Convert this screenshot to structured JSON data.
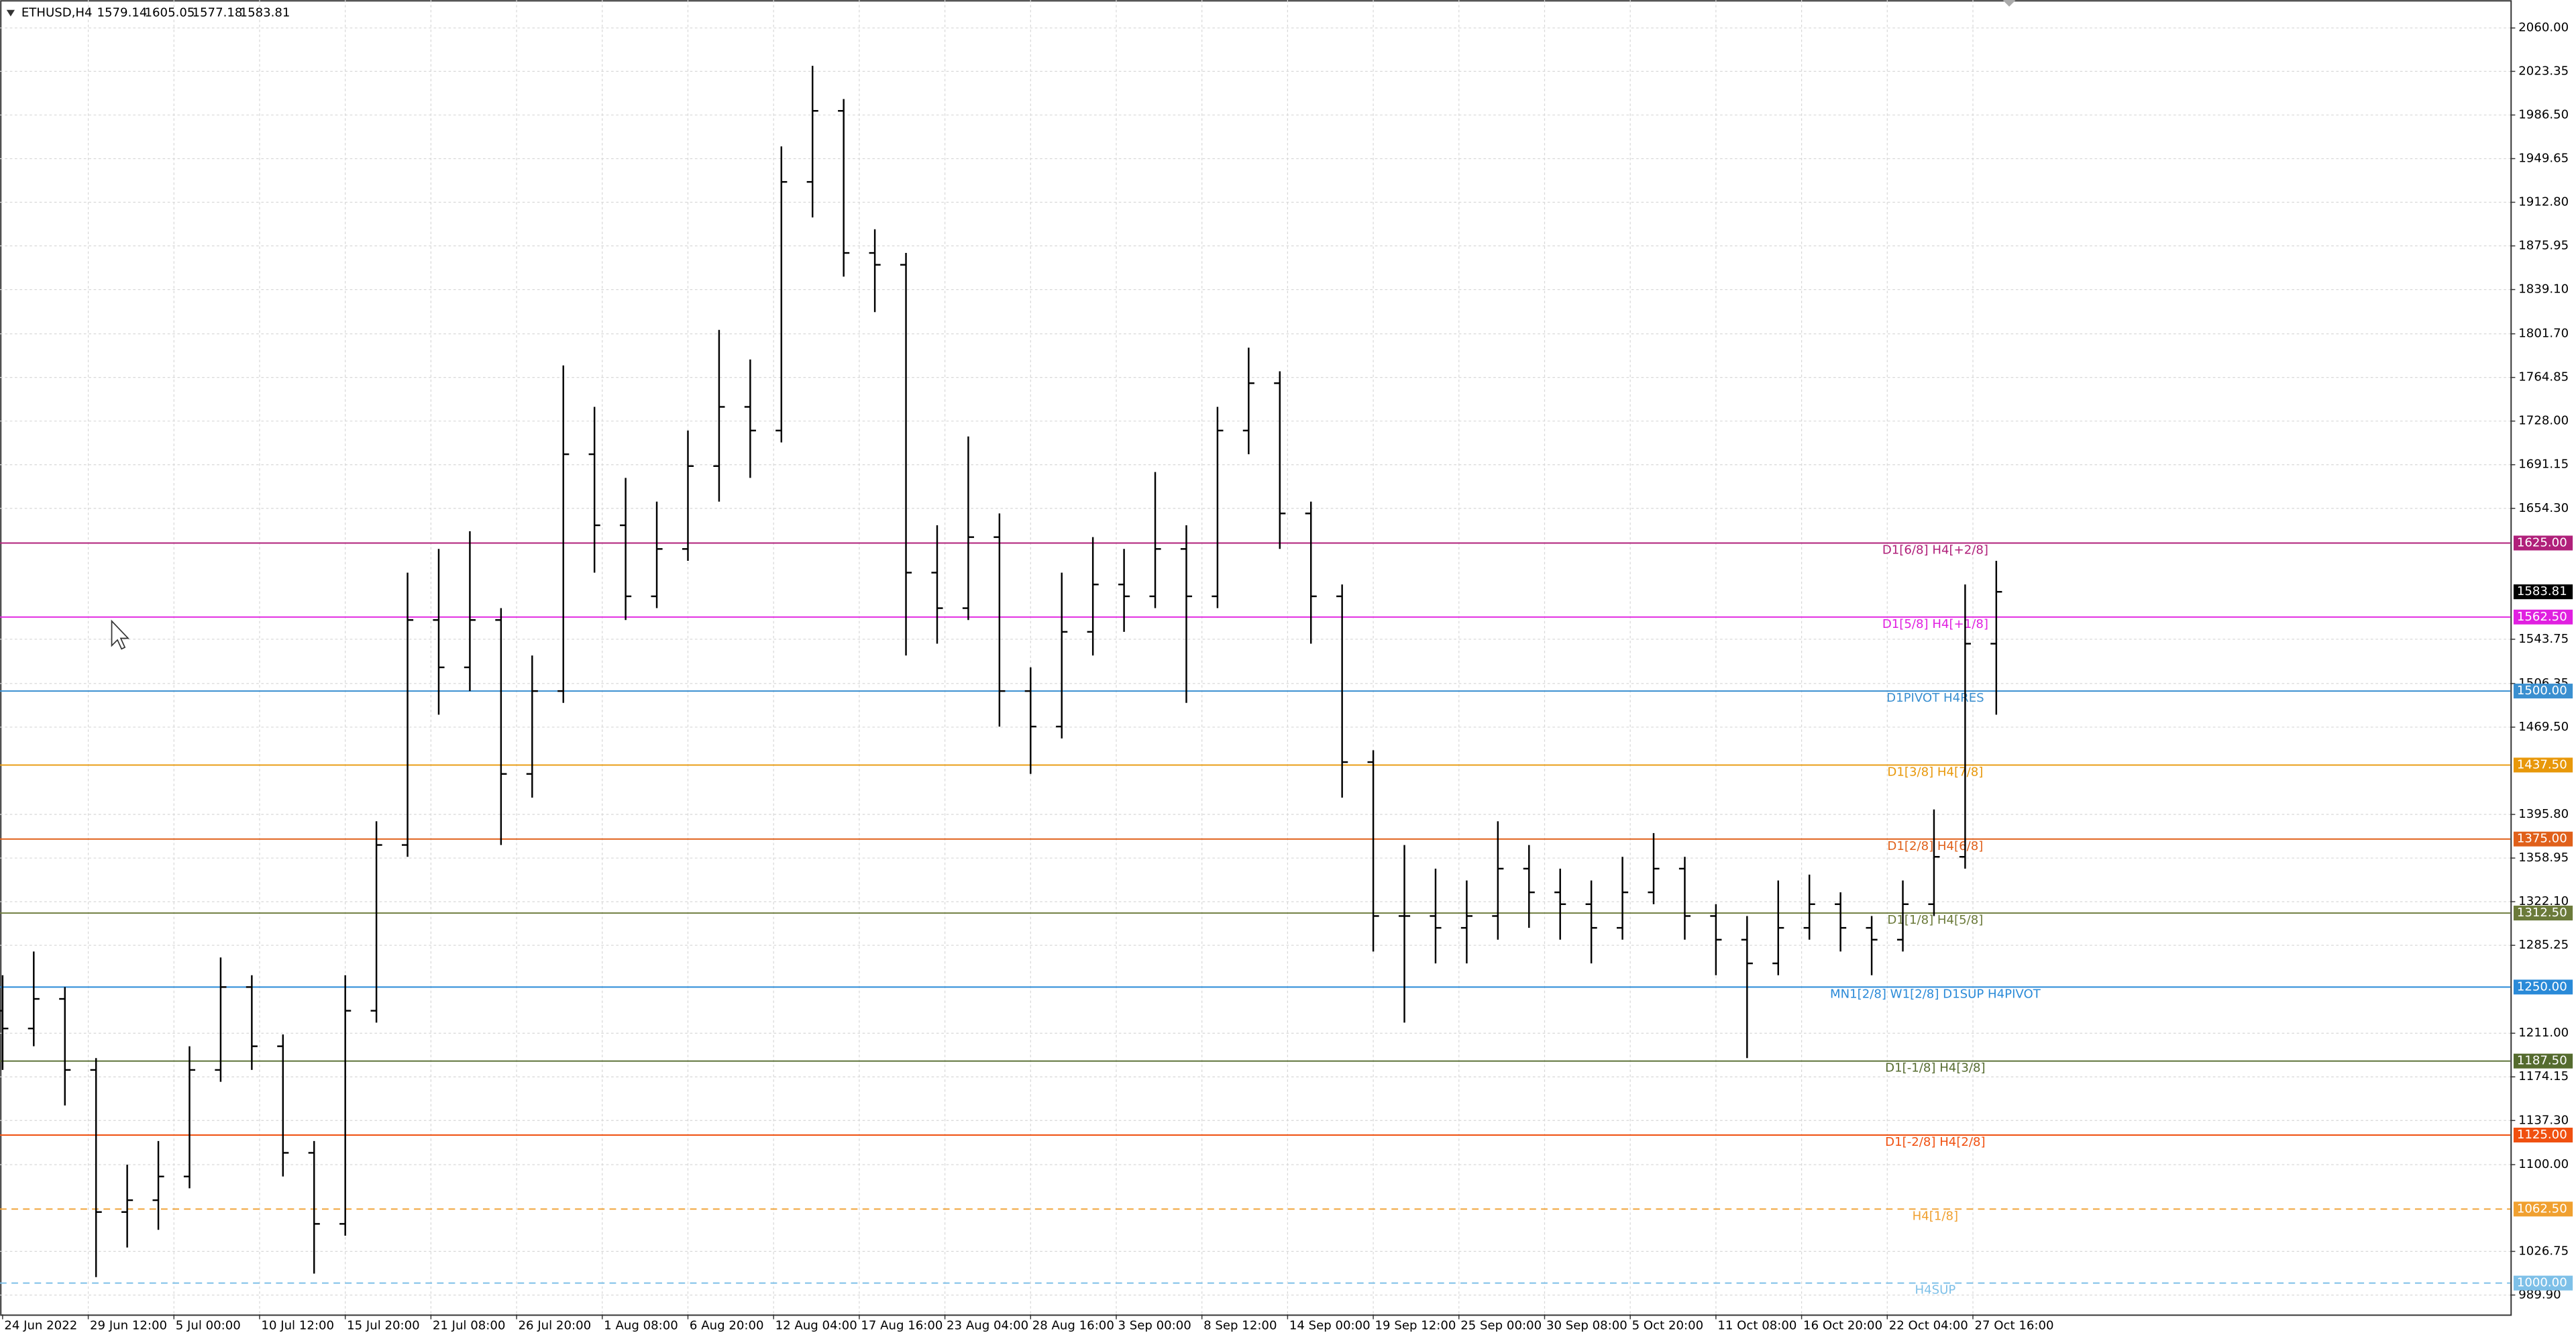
{
  "chart_data": {
    "type": "ohlc",
    "title": "ETHUSD,H4",
    "header_ohlc": [
      1579.14,
      1605.05,
      1577.18,
      1583.81
    ],
    "last_price": 1583.81,
    "color": "#000000",
    "x": [
      0,
      12,
      24,
      36,
      48,
      60,
      72,
      84,
      96,
      108,
      120,
      132,
      144,
      156,
      168,
      180,
      192,
      204,
      216,
      228,
      240,
      252,
      264,
      276,
      288,
      300,
      312,
      324,
      336,
      348,
      360,
      372,
      384,
      396,
      408,
      420,
      432,
      444,
      456,
      468,
      480,
      492,
      504,
      516,
      528,
      540,
      552,
      564,
      576,
      588,
      600,
      612,
      624,
      636,
      648,
      660,
      672,
      684,
      696,
      708,
      720,
      732,
      744,
      756,
      768
    ],
    "open": [
      1230,
      1215,
      1240,
      1180,
      1060,
      1070,
      1090,
      1180,
      1250,
      1200,
      1110,
      1050,
      1230,
      1370,
      1560,
      1520,
      1560,
      1430,
      1500,
      1700,
      1640,
      1580,
      1620,
      1690,
      1740,
      1720,
      1930,
      1990,
      1870,
      1860,
      1600,
      1570,
      1630,
      1500,
      1470,
      1550,
      1590,
      1580,
      1620,
      1580,
      1720,
      1760,
      1650,
      1580,
      1440,
      1310,
      1310,
      1300,
      1310,
      1350,
      1330,
      1320,
      1300,
      1330,
      1350,
      1310,
      1290,
      1270,
      1300,
      1320,
      1300,
      1290,
      1320,
      1360,
      1540
    ],
    "high": [
      1260,
      1280,
      1250,
      1190,
      1100,
      1120,
      1200,
      1275,
      1260,
      1210,
      1120,
      1260,
      1390,
      1600,
      1620,
      1635,
      1570,
      1530,
      1775,
      1740,
      1680,
      1660,
      1720,
      1805,
      1780,
      1960,
      2028,
      2000,
      1890,
      1870,
      1640,
      1715,
      1650,
      1520,
      1600,
      1630,
      1620,
      1685,
      1640,
      1740,
      1790,
      1770,
      1660,
      1590,
      1450,
      1370,
      1350,
      1340,
      1390,
      1370,
      1350,
      1340,
      1360,
      1380,
      1360,
      1320,
      1310,
      1340,
      1345,
      1330,
      1310,
      1340,
      1400,
      1590,
      1610
    ],
    "low": [
      1180,
      1200,
      1150,
      1005,
      1030,
      1045,
      1080,
      1170,
      1180,
      1090,
      1008,
      1040,
      1220,
      1360,
      1480,
      1500,
      1370,
      1410,
      1490,
      1600,
      1560,
      1570,
      1610,
      1660,
      1680,
      1710,
      1900,
      1850,
      1820,
      1530,
      1540,
      1560,
      1470,
      1430,
      1460,
      1530,
      1550,
      1570,
      1490,
      1570,
      1700,
      1620,
      1540,
      1410,
      1280,
      1220,
      1270,
      1270,
      1290,
      1300,
      1290,
      1270,
      1290,
      1320,
      1290,
      1260,
      1190,
      1260,
      1290,
      1280,
      1260,
      1280,
      1310,
      1350,
      1480
    ],
    "close": [
      1215,
      1240,
      1180,
      1060,
      1070,
      1090,
      1180,
      1250,
      1200,
      1110,
      1050,
      1230,
      1370,
      1560,
      1520,
      1560,
      1430,
      1500,
      1700,
      1640,
      1580,
      1620,
      1690,
      1740,
      1720,
      1930,
      1990,
      1870,
      1860,
      1600,
      1570,
      1630,
      1500,
      1470,
      1550,
      1590,
      1580,
      1620,
      1580,
      1720,
      1760,
      1650,
      1580,
      1440,
      1310,
      1310,
      1300,
      1310,
      1350,
      1330,
      1320,
      1300,
      1330,
      1350,
      1310,
      1290,
      1270,
      1300,
      1320,
      1300,
      1290,
      1320,
      1360,
      1540,
      1583.81
    ],
    "xlim": [
      -1,
      966
    ],
    "ylim": [
      973.6,
      2083.6
    ],
    "grid": true,
    "xticks": [
      {
        "value": 0,
        "label": "24 Jun 2022"
      },
      {
        "value": 33,
        "label": "29 Jun 12:00"
      },
      {
        "value": 66,
        "label": "5 Jul 00:00"
      },
      {
        "value": 99,
        "label": "10 Jul 12:00"
      },
      {
        "value": 132,
        "label": "15 Jul 20:00"
      },
      {
        "value": 165,
        "label": "21 Jul 08:00"
      },
      {
        "value": 198,
        "label": "26 Jul 20:00"
      },
      {
        "value": 231,
        "label": "1 Aug 08:00"
      },
      {
        "value": 264,
        "label": "6 Aug 20:00"
      },
      {
        "value": 297,
        "label": "12 Aug 04:00"
      },
      {
        "value": 330,
        "label": "17 Aug 16:00"
      },
      {
        "value": 363,
        "label": "23 Aug 04:00"
      },
      {
        "value": 396,
        "label": "28 Aug 16:00"
      },
      {
        "value": 429,
        "label": "3 Sep 00:00"
      },
      {
        "value": 462,
        "label": "8 Sep 12:00"
      },
      {
        "value": 495,
        "label": "14 Sep 00:00"
      },
      {
        "value": 528,
        "label": "19 Sep 12:00"
      },
      {
        "value": 561,
        "label": "25 Sep 00:00"
      },
      {
        "value": 594,
        "label": "30 Sep 08:00"
      },
      {
        "value": 627,
        "label": "5 Oct 20:00"
      },
      {
        "value": 660,
        "label": "11 Oct 08:00"
      },
      {
        "value": 693,
        "label": "16 Oct 20:00"
      },
      {
        "value": 726,
        "label": "22 Oct 04:00"
      },
      {
        "value": 759,
        "label": "27 Oct 16:00"
      }
    ],
    "yticks": [
      {
        "value": 2060,
        "label": "2060.00"
      },
      {
        "value": 2023.35,
        "label": "2023.35"
      },
      {
        "value": 1986.5,
        "label": "1986.50"
      },
      {
        "value": 1949.65,
        "label": "1949.65"
      },
      {
        "value": 1912.8,
        "label": "1912.80"
      },
      {
        "value": 1875.95,
        "label": "1875.95"
      },
      {
        "value": 1839.1,
        "label": "1839.10"
      },
      {
        "value": 1801.7,
        "label": "1801.70"
      },
      {
        "value": 1764.85,
        "label": "1764.85"
      },
      {
        "value": 1728,
        "label": "1728.00"
      },
      {
        "value": 1691.15,
        "label": "1691.15"
      },
      {
        "value": 1654.3,
        "label": "1654.30"
      },
      {
        "value": 1543.75,
        "label": "1543.75"
      },
      {
        "value": 1506.35,
        "label": "1506.35"
      },
      {
        "value": 1469.5,
        "label": "1469.50"
      },
      {
        "value": 1395.8,
        "label": "1395.80"
      },
      {
        "value": 1358.95,
        "label": "1358.95"
      },
      {
        "value": 1322.1,
        "label": "1322.10"
      },
      {
        "value": 1285.25,
        "label": "1285.25"
      },
      {
        "value": 1211,
        "label": "1211.00"
      },
      {
        "value": 1174.15,
        "label": "1174.15"
      },
      {
        "value": 1137.3,
        "label": "1137.30"
      },
      {
        "value": 1100,
        "label": "1100.00"
      },
      {
        "value": 1026.75,
        "label": "1026.75"
      },
      {
        "value": 989.9,
        "label": "989.90"
      }
    ],
    "levels": [
      {
        "value": 1625,
        "label": "1625.00",
        "text": "D1[6/8] H4[+2/8]",
        "color": "#b0207a",
        "dashed": false
      },
      {
        "value": 1562.5,
        "label": "1562.50",
        "text": "D1[5/8] H4[+1/8]",
        "color": "#e020e0",
        "dashed": false
      },
      {
        "value": 1500,
        "label": "1500.00",
        "text": "D1PIVOT H4RES",
        "color": "#3a8fd0",
        "dashed": false
      },
      {
        "value": 1437.5,
        "label": "1437.50",
        "text": "D1[3/8] H4[7/8]",
        "color": "#e8980a",
        "dashed": false
      },
      {
        "value": 1375,
        "label": "1375.00",
        "text": "D1[2/8] H4[6/8]",
        "color": "#e0601a",
        "dashed": false
      },
      {
        "value": 1312.5,
        "label": "1312.50",
        "text": "D1[1/8] H4[5/8]",
        "color": "#6b7a3a",
        "dashed": false
      },
      {
        "value": 1250,
        "label": "1250.00",
        "text": "MN1[2/8] W1[2/8] D1SUP H4PIVOT",
        "color": "#2a8ad8",
        "dashed": false
      },
      {
        "value": 1187.5,
        "label": "1187.50",
        "text": "D1[-1/8] H4[3/8]",
        "color": "#556b2f",
        "dashed": false
      },
      {
        "value": 1125,
        "label": "1125.00",
        "text": "D1[-2/8] H4[2/8]",
        "color": "#f05010",
        "dashed": false
      },
      {
        "value": 1062.5,
        "label": "1062.50",
        "text": "H4[1/8]",
        "color": "#f0a030",
        "dashed": true
      },
      {
        "value": 1000,
        "label": "1000.00",
        "text": "H4SUP",
        "color": "#7ec0e8",
        "dashed": true
      }
    ]
  }
}
